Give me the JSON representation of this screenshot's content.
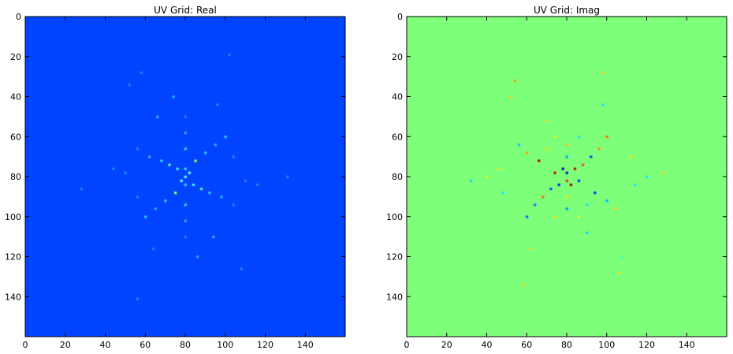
{
  "chart_data": [
    {
      "type": "heatmap",
      "title": "UV Grid: Real",
      "xlabel": "",
      "ylabel": "",
      "xlim": [
        0,
        160
      ],
      "ylim": [
        160,
        0
      ],
      "xticks": [
        0,
        20,
        40,
        60,
        80,
        100,
        120,
        140
      ],
      "yticks": [
        0,
        20,
        40,
        60,
        80,
        100,
        120,
        140
      ],
      "grid": false,
      "colormap": "jet",
      "background_color": "#0044ff",
      "center": [
        80,
        80
      ],
      "description_spokes_deg": [
        0,
        60,
        120
      ],
      "points": [
        [
          80,
          80,
          "#7bffff"
        ],
        [
          80,
          76,
          "#40d8ff"
        ],
        [
          80,
          84,
          "#40d8ff"
        ],
        [
          82,
          78,
          "#7bffff"
        ],
        [
          78,
          82,
          "#7bffff"
        ],
        [
          76,
          76,
          "#48f0ff"
        ],
        [
          84,
          84,
          "#48f0ff"
        ],
        [
          72,
          74,
          "#66ff99"
        ],
        [
          88,
          86,
          "#66ff99"
        ],
        [
          68,
          72,
          "#33ccff"
        ],
        [
          92,
          88,
          "#33ccff"
        ],
        [
          75,
          88,
          "#b0ff4a"
        ],
        [
          85,
          72,
          "#b0ff4a"
        ],
        [
          70,
          92,
          "#33ccff"
        ],
        [
          90,
          68,
          "#33ccff"
        ],
        [
          65,
          96,
          "#2fb2ff"
        ],
        [
          95,
          64,
          "#2fb2ff"
        ],
        [
          60,
          100,
          "#33ccff"
        ],
        [
          100,
          60,
          "#33ccff"
        ],
        [
          80,
          66,
          "#40d8ff"
        ],
        [
          80,
          94,
          "#40d8ff"
        ],
        [
          80,
          58,
          "#2fb2ff"
        ],
        [
          80,
          102,
          "#2fb2ff"
        ],
        [
          80,
          50,
          "#1c8cff"
        ],
        [
          80,
          110,
          "#1c8cff"
        ],
        [
          62,
          70,
          "#2fb2ff"
        ],
        [
          98,
          90,
          "#2fb2ff"
        ],
        [
          56,
          66,
          "#1c8cff"
        ],
        [
          104,
          94,
          "#1c8cff"
        ],
        [
          58,
          28,
          "#1c8cff"
        ],
        [
          56,
          141,
          "#1c8cff"
        ],
        [
          102,
          19,
          "#1c8cff"
        ],
        [
          131,
          80,
          "#1c8cff"
        ],
        [
          28,
          86,
          "#1c8cff"
        ],
        [
          52,
          34,
          "#1c8cff"
        ],
        [
          108,
          126,
          "#1c8cff"
        ],
        [
          74,
          40,
          "#2fb2ff"
        ],
        [
          86,
          120,
          "#2fb2ff"
        ],
        [
          66,
          50,
          "#2fb2ff"
        ],
        [
          94,
          110,
          "#2fb2ff"
        ],
        [
          110,
          82,
          "#1c8cff"
        ],
        [
          50,
          78,
          "#1c8cff"
        ],
        [
          116,
          84,
          "#1c8cff"
        ],
        [
          44,
          76,
          "#1c8cff"
        ],
        [
          96,
          44,
          "#1c8cff"
        ],
        [
          64,
          116,
          "#1c8cff"
        ],
        [
          104,
          70,
          "#1c8cff"
        ],
        [
          56,
          90,
          "#1c8cff"
        ]
      ]
    },
    {
      "type": "heatmap",
      "title": "UV Grid: Imag",
      "xlabel": "",
      "ylabel": "",
      "xlim": [
        0,
        160
      ],
      "ylim": [
        160,
        0
      ],
      "xticks": [
        0,
        20,
        40,
        60,
        80,
        100,
        120,
        140
      ],
      "yticks": [
        0,
        20,
        40,
        60,
        80,
        100,
        120,
        140
      ],
      "grid": false,
      "colormap": "jet",
      "background_color": "#7dff7a",
      "center": [
        80,
        80
      ],
      "points": [
        [
          78,
          76,
          "#000c9a"
        ],
        [
          82,
          84,
          "#9a0000"
        ],
        [
          80,
          82,
          "#ff2a00"
        ],
        [
          80,
          78,
          "#0010d0"
        ],
        [
          84,
          76,
          "#b80000"
        ],
        [
          76,
          84,
          "#0018ff"
        ],
        [
          74,
          78,
          "#c40000"
        ],
        [
          86,
          82,
          "#0020ff"
        ],
        [
          72,
          86,
          "#0050ff"
        ],
        [
          88,
          74,
          "#ff4800"
        ],
        [
          68,
          90,
          "#ff6a00"
        ],
        [
          92,
          70,
          "#0040ff"
        ],
        [
          64,
          94,
          "#0070ff"
        ],
        [
          96,
          66,
          "#ff8a00"
        ],
        [
          80,
          70,
          "#00a8ff"
        ],
        [
          80,
          90,
          "#ffe400"
        ],
        [
          80,
          64,
          "#ffc400"
        ],
        [
          80,
          96,
          "#0090ff"
        ],
        [
          66,
          72,
          "#c00000"
        ],
        [
          94,
          88,
          "#0030ff"
        ],
        [
          60,
          68,
          "#ff9a00"
        ],
        [
          100,
          92,
          "#00b4ff"
        ],
        [
          56,
          64,
          "#00c8ff"
        ],
        [
          104,
          96,
          "#ffd000"
        ],
        [
          74,
          60,
          "#e8ff10"
        ],
        [
          86,
          100,
          "#e8ff10"
        ],
        [
          70,
          52,
          "#ffe000"
        ],
        [
          90,
          108,
          "#00d4ff"
        ],
        [
          60,
          100,
          "#0060ff"
        ],
        [
          100,
          60,
          "#ff7000"
        ],
        [
          46,
          76,
          "#ffe800"
        ],
        [
          114,
          84,
          "#10e0ff"
        ],
        [
          40,
          80,
          "#f0ff00"
        ],
        [
          120,
          80,
          "#10e0ff"
        ],
        [
          52,
          40,
          "#ffd400"
        ],
        [
          108,
          120,
          "#40ffc0"
        ],
        [
          54,
          32,
          "#ff9000"
        ],
        [
          106,
          128,
          "#ffe000"
        ],
        [
          98,
          28,
          "#ffd000"
        ],
        [
          58,
          134,
          "#ffd000"
        ],
        [
          128,
          78,
          "#ffd000"
        ],
        [
          32,
          82,
          "#10d0ff"
        ],
        [
          62,
          116,
          "#ffe000"
        ],
        [
          98,
          44,
          "#10e0ff"
        ],
        [
          112,
          70,
          "#ffe000"
        ],
        [
          48,
          88,
          "#10e0ff"
        ],
        [
          74,
          100,
          "#ffe000"
        ],
        [
          86,
          60,
          "#10e0ff"
        ],
        [
          70,
          66,
          "#ffe000"
        ],
        [
          90,
          94,
          "#10e0ff"
        ]
      ]
    }
  ]
}
